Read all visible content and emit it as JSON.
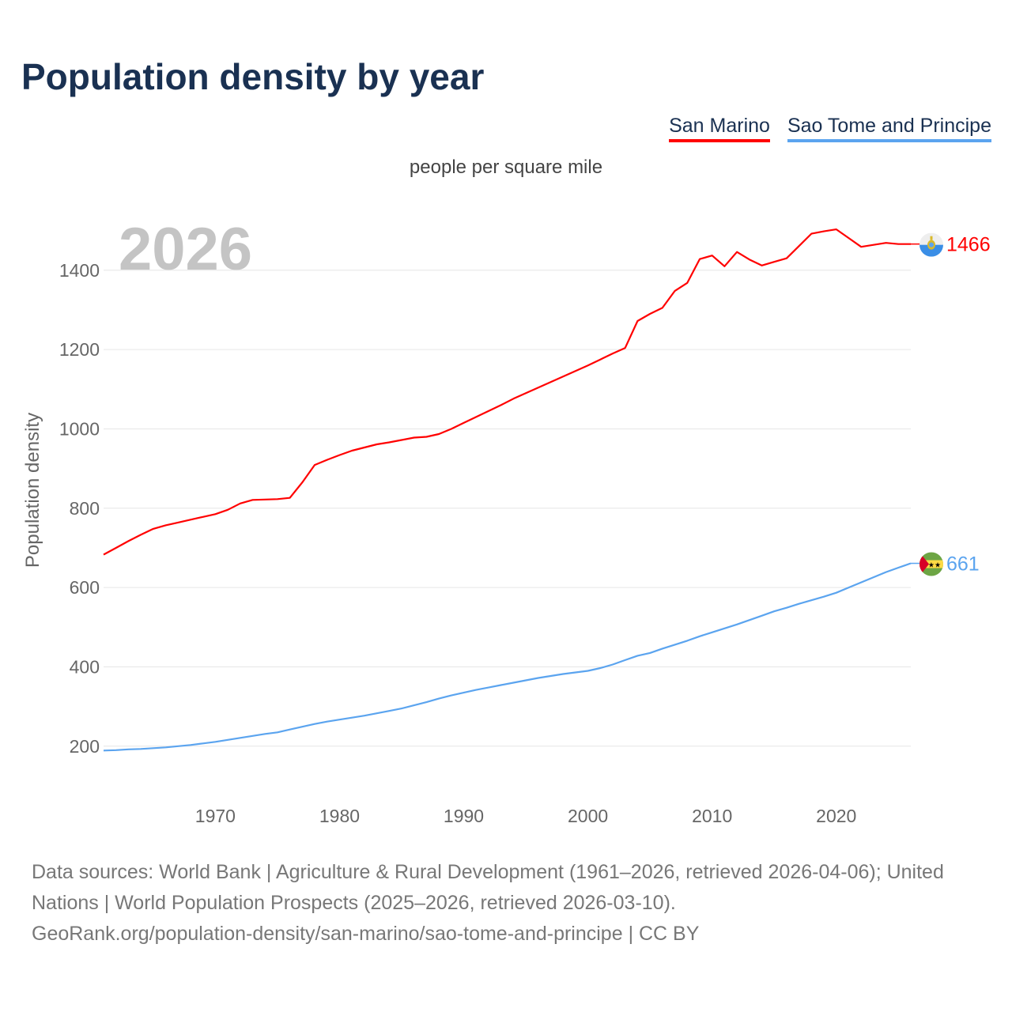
{
  "title": "Population density by year",
  "legend": [
    {
      "label": "San Marino",
      "color": "#ff0000"
    },
    {
      "label": "Sao Tome and Principe",
      "color": "#5ba4ef"
    }
  ],
  "unit": "people per square mile",
  "year_label": "2026",
  "footer": {
    "line1": "Data sources: World Bank | Agriculture & Rural Development (1961–2026, retrieved 2026-04-06); United Nations | World Population Prospects (2025–2026, retrieved 2026-03-10).",
    "line2": "GeoRank.org/population-density/san-marino/sao-tome-and-principe | CC BY"
  },
  "chart_data": {
    "type": "line",
    "title": "Population density by year",
    "ylabel": "Population density",
    "xlabel": "",
    "xlim": [
      1961,
      2026
    ],
    "ylim": [
      88,
      1563
    ],
    "xticks": [
      1970,
      1980,
      1990,
      2000,
      2010,
      2020
    ],
    "yticks": [
      200,
      400,
      600,
      800,
      1000,
      1200,
      1400
    ],
    "grid": "horizontal",
    "legend_position": "top-right",
    "series": [
      {
        "name": "San Marino",
        "color": "#ff0000",
        "end_label": "1466",
        "flag": "san-marino-flag",
        "x_start": 1961,
        "values": [
          683,
          700,
          717,
          733,
          748,
          757,
          764,
          771,
          778,
          785,
          796,
          812,
          821,
          822,
          823,
          826,
          865,
          909,
          922,
          934,
          945,
          953,
          961,
          966,
          972,
          978,
          980,
          987,
          1000,
          1015,
          1030,
          1045,
          1060,
          1076,
          1090,
          1104,
          1118,
          1132,
          1146,
          1160,
          1175,
          1190,
          1204,
          1272,
          1290,
          1305,
          1348,
          1368,
          1428,
          1437,
          1410,
          1446,
          1427,
          1412,
          1421,
          1430,
          1461,
          1492,
          1498,
          1503,
          1481,
          1459,
          1464,
          1469,
          1466,
          1466
        ]
      },
      {
        "name": "Sao Tome and Principe",
        "color": "#5ba4ef",
        "end_label": "661",
        "flag": "sao-tome-flag",
        "x_start": 1961,
        "values": [
          189,
          190,
          192,
          193,
          195,
          197,
          200,
          203,
          207,
          211,
          216,
          221,
          226,
          231,
          235,
          242,
          249,
          256,
          262,
          267,
          272,
          277,
          283,
          289,
          295,
          303,
          311,
          320,
          328,
          335,
          342,
          348,
          354,
          360,
          366,
          372,
          377,
          382,
          386,
          390,
          397,
          406,
          417,
          428,
          435,
          446,
          456,
          466,
          477,
          487,
          497,
          507,
          518,
          529,
          540,
          549,
          559,
          568,
          577,
          587,
          600,
          613,
          626,
          639,
          650,
          661
        ]
      }
    ]
  }
}
